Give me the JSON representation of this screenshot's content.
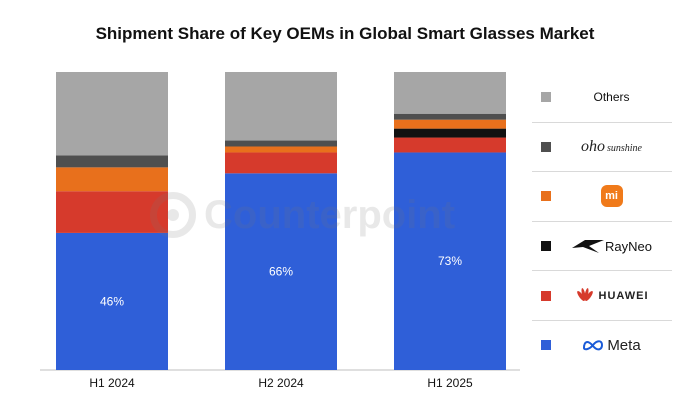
{
  "chart_data": {
    "type": "bar",
    "stacked": true,
    "title": "Shipment Share of Key OEMs in Global Smart Glasses Market",
    "categories": [
      "H1 2024",
      "H2 2024",
      "H1 2025"
    ],
    "ylim": [
      0,
      100
    ],
    "series": [
      {
        "name": "Meta",
        "color": "#2f5fd8",
        "values": [
          46,
          66,
          73
        ],
        "labels": [
          "46%",
          "66%",
          "73%"
        ]
      },
      {
        "name": "HUAWEI",
        "color": "#d63a2c",
        "values": [
          14,
          7,
          5
        ]
      },
      {
        "name": "RayNeo",
        "color": "#111111",
        "values": [
          0,
          0,
          3
        ]
      },
      {
        "name": "Xiaomi",
        "color": "#e8701c",
        "values": [
          8,
          2,
          3
        ]
      },
      {
        "name": "oho sunshine",
        "color": "#4f4f4f",
        "values": [
          4,
          2,
          2
        ]
      },
      {
        "name": "Others",
        "color": "#a6a6a6",
        "values": [
          28,
          23,
          14
        ]
      }
    ],
    "legend_position": "right",
    "grid": false,
    "watermark": "Counterpoint"
  },
  "legend": [
    {
      "key": "others",
      "label": "Others",
      "color": "#a6a6a6",
      "icon": "text"
    },
    {
      "key": "oho",
      "label": "oho",
      "sub": "sunshine",
      "color": "#4f4f4f",
      "icon": "oho-logo"
    },
    {
      "key": "xiaomi",
      "label": "mi",
      "color": "#e8701c",
      "icon": "xiaomi-logo"
    },
    {
      "key": "rayneo",
      "label": "RayNeo",
      "color": "#111111",
      "icon": "rayneo-logo"
    },
    {
      "key": "huawei",
      "label": "HUAWEI",
      "color": "#d63a2c",
      "icon": "huawei-logo"
    },
    {
      "key": "meta",
      "label": "Meta",
      "color": "#2f5fd8",
      "icon": "meta-logo"
    }
  ]
}
